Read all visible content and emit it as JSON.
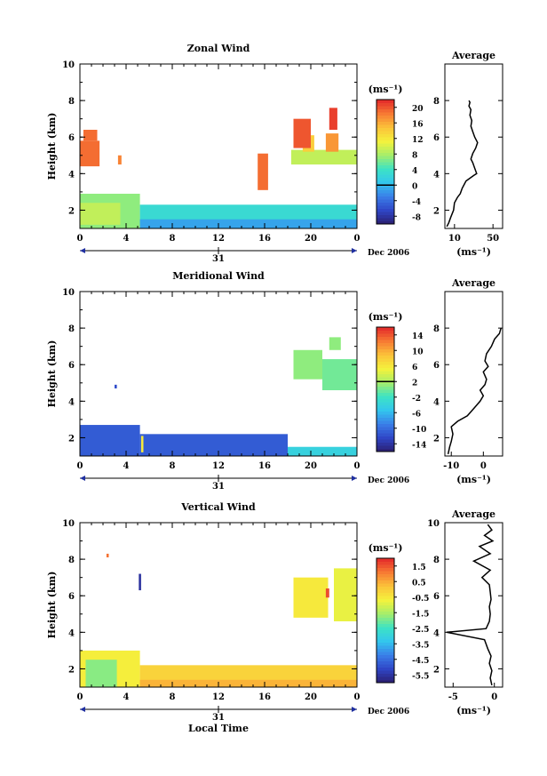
{
  "figure": {
    "footer_date": "Dec 2006",
    "day_label": "31",
    "bottom_xlabel": "Local Time"
  },
  "chart_data": [
    {
      "type": "heatmap",
      "title": "Zonal Wind",
      "ylabel": "Height (km)",
      "xlabel": "",
      "unit_label": "(ms⁻¹)",
      "x_ticks": [
        "0",
        "4",
        "8",
        "12",
        "16",
        "20",
        "0"
      ],
      "x_range": [
        0,
        24
      ],
      "y_ticks": [
        "2",
        "4",
        "6",
        "8",
        "10"
      ],
      "y_range": [
        1,
        10
      ],
      "colorbar_ticks": [
        "20",
        "16",
        "12",
        "8",
        "4",
        "0",
        "-4",
        "-8"
      ],
      "colorbar_range": [
        -10,
        22
      ],
      "colorbar_marker": 0,
      "regions": [
        {
          "x0": 0,
          "x1": 5.2,
          "y0": 1.0,
          "y1": 2.9,
          "value": 7
        },
        {
          "x0": 0,
          "x1": 3.5,
          "y0": 1.2,
          "y1": 2.4,
          "value": 9
        },
        {
          "x0": 5.2,
          "x1": 24,
          "y0": 1.0,
          "y1": 2.3,
          "value": 3
        },
        {
          "x0": 5.2,
          "x1": 24,
          "y0": 1.0,
          "y1": 1.5,
          "value": -1
        },
        {
          "x0": 0,
          "x1": 1.7,
          "y0": 4.4,
          "y1": 5.8,
          "value": 19
        },
        {
          "x0": 0.3,
          "x1": 1.5,
          "y0": 5.8,
          "y1": 6.4,
          "value": 19
        },
        {
          "x0": 3.3,
          "x1": 3.6,
          "y0": 4.5,
          "y1": 5.0,
          "value": 18
        },
        {
          "x0": 15.4,
          "x1": 16.3,
          "y0": 3.1,
          "y1": 5.1,
          "value": 19
        },
        {
          "x0": 18.3,
          "x1": 24,
          "y0": 4.5,
          "y1": 5.3,
          "value": 9
        },
        {
          "x0": 19.3,
          "x1": 20.3,
          "y0": 5.2,
          "y1": 6.1,
          "value": 14
        },
        {
          "x0": 18.5,
          "x1": 20.0,
          "y0": 5.4,
          "y1": 7.0,
          "value": 20
        },
        {
          "x0": 21.3,
          "x1": 22.4,
          "y0": 5.2,
          "y1": 6.2,
          "value": 17
        },
        {
          "x0": 21.6,
          "x1": 22.3,
          "y0": 6.4,
          "y1": 7.6,
          "value": 21
        }
      ],
      "profile": {
        "title": "Average",
        "xlabel": "(ms⁻¹)",
        "x_ticks": [
          "10",
          "50"
        ],
        "x_range": [
          0,
          60
        ],
        "y_ticks": [
          "2",
          "4",
          "6",
          "8"
        ],
        "y_range": [
          1,
          10
        ],
        "points": [
          [
            2,
            1.1
          ],
          [
            4,
            1.3
          ],
          [
            6,
            1.6
          ],
          [
            9,
            2.0
          ],
          [
            10,
            2.4
          ],
          [
            13,
            2.7
          ],
          [
            16,
            2.9
          ],
          [
            18,
            3.2
          ],
          [
            22,
            3.6
          ],
          [
            30,
            3.9
          ],
          [
            33,
            4.0
          ],
          [
            31,
            4.3
          ],
          [
            29,
            4.6
          ],
          [
            27,
            4.8
          ],
          [
            29,
            5.1
          ],
          [
            32,
            5.4
          ],
          [
            34,
            5.7
          ],
          [
            31,
            6.0
          ],
          [
            29,
            6.3
          ],
          [
            27,
            6.6
          ],
          [
            28,
            6.9
          ],
          [
            26,
            7.2
          ],
          [
            27,
            7.5
          ],
          [
            25,
            7.7
          ],
          [
            26,
            7.9
          ],
          [
            25,
            8.0
          ]
        ]
      }
    },
    {
      "type": "heatmap",
      "title": "Meridional Wind",
      "ylabel": "Height (km)",
      "xlabel": "",
      "unit_label": "(ms⁻¹)",
      "x_ticks": [
        "0",
        "4",
        "8",
        "12",
        "16",
        "20",
        "0"
      ],
      "x_range": [
        0,
        24
      ],
      "y_ticks": [
        "2",
        "4",
        "6",
        "8",
        "10"
      ],
      "y_range": [
        1,
        10
      ],
      "colorbar_ticks": [
        "14",
        "10",
        "6",
        "2",
        "-2",
        "-6",
        "-10",
        "-14"
      ],
      "colorbar_range": [
        -16,
        16
      ],
      "colorbar_marker": 2,
      "regions": [
        {
          "x0": 0,
          "x1": 5.2,
          "y0": 1.0,
          "y1": 2.7,
          "value": -11
        },
        {
          "x0": 5.2,
          "x1": 18,
          "y0": 1.0,
          "y1": 2.2,
          "value": -11
        },
        {
          "x0": 18,
          "x1": 24,
          "y0": 1.0,
          "y1": 1.5,
          "value": -4
        },
        {
          "x0": 5.3,
          "x1": 5.5,
          "y0": 1.2,
          "y1": 2.1,
          "value": 6
        },
        {
          "x0": 3.0,
          "x1": 3.2,
          "y0": 4.7,
          "y1": 4.9,
          "value": -12
        },
        {
          "x0": 18.5,
          "x1": 21.0,
          "y0": 5.2,
          "y1": 6.8,
          "value": 1
        },
        {
          "x0": 21.0,
          "x1": 24,
          "y0": 4.6,
          "y1": 6.3,
          "value": 0
        },
        {
          "x0": 21.6,
          "x1": 22.6,
          "y0": 6.8,
          "y1": 7.5,
          "value": 1
        }
      ],
      "profile": {
        "title": "Average",
        "xlabel": "(ms⁻¹)",
        "x_ticks": [
          "-10",
          "0"
        ],
        "x_range": [
          -12,
          6
        ],
        "y_ticks": [
          "2",
          "4",
          "6",
          "8"
        ],
        "y_range": [
          1,
          10
        ],
        "points": [
          [
            -11,
            1.1
          ],
          [
            -10.5,
            1.5
          ],
          [
            -10,
            1.8
          ],
          [
            -9.5,
            2.2
          ],
          [
            -10,
            2.6
          ],
          [
            -8,
            2.9
          ],
          [
            -5,
            3.2
          ],
          [
            -3,
            3.6
          ],
          [
            -1,
            4.0
          ],
          [
            0,
            4.3
          ],
          [
            -1,
            4.6
          ],
          [
            0.5,
            4.9
          ],
          [
            1,
            5.2
          ],
          [
            0,
            5.6
          ],
          [
            1.5,
            5.9
          ],
          [
            0.5,
            6.2
          ],
          [
            1,
            6.6
          ],
          [
            2.5,
            7.0
          ],
          [
            3.5,
            7.4
          ],
          [
            5,
            7.7
          ],
          [
            5.5,
            8.0
          ]
        ]
      }
    },
    {
      "type": "heatmap",
      "title": "Vertical Wind",
      "ylabel": "Height (km)",
      "xlabel": "Local Time",
      "unit_label": "(ms⁻¹)",
      "x_ticks": [
        "0",
        "4",
        "8",
        "12",
        "16",
        "20",
        "0"
      ],
      "x_range": [
        0,
        24
      ],
      "y_ticks": [
        "2",
        "4",
        "6",
        "8",
        "10"
      ],
      "y_range": [
        1,
        10
      ],
      "colorbar_ticks": [
        "1.5",
        "0.5",
        "-0.5",
        "-1.5",
        "-2.5",
        "-3.5",
        "-4.5",
        "-5.5"
      ],
      "colorbar_range": [
        -6,
        2
      ],
      "colorbar_marker": null,
      "regions": [
        {
          "x0": 0,
          "x1": 5.2,
          "y0": 1.0,
          "y1": 3.0,
          "value": -0.6
        },
        {
          "x0": 0.5,
          "x1": 3.2,
          "y0": 1.0,
          "y1": 2.5,
          "value": -1.8
        },
        {
          "x0": 5.2,
          "x1": 24,
          "y0": 1.0,
          "y1": 2.2,
          "value": -0.1
        },
        {
          "x0": 5.2,
          "x1": 24,
          "y0": 1.0,
          "y1": 1.4,
          "value": 0.4
        },
        {
          "x0": 18.5,
          "x1": 21.5,
          "y0": 4.8,
          "y1": 7.0,
          "value": -0.5
        },
        {
          "x0": 22.0,
          "x1": 24,
          "y0": 4.6,
          "y1": 7.5,
          "value": -0.8
        },
        {
          "x0": 5.1,
          "x1": 5.3,
          "y0": 6.3,
          "y1": 7.2,
          "value": -5.5
        },
        {
          "x0": 2.3,
          "x1": 2.5,
          "y0": 8.1,
          "y1": 8.3,
          "value": 1.2
        },
        {
          "x0": 21.3,
          "x1": 21.6,
          "y0": 5.9,
          "y1": 6.4,
          "value": 1.6
        }
      ],
      "profile": {
        "title": "Average",
        "xlabel": "(ms⁻¹)",
        "x_ticks": [
          "-5",
          "0"
        ],
        "x_range": [
          -6,
          1
        ],
        "y_ticks": [
          "2",
          "4",
          "6",
          "8",
          "10"
        ],
        "y_range": [
          1,
          10
        ],
        "points": [
          [
            -0.3,
            1.1
          ],
          [
            -0.5,
            1.5
          ],
          [
            -0.3,
            1.9
          ],
          [
            -0.6,
            2.3
          ],
          [
            -0.4,
            2.7
          ],
          [
            -0.8,
            3.1
          ],
          [
            -1.2,
            3.6
          ],
          [
            -5.8,
            4.0
          ],
          [
            -1,
            4.2
          ],
          [
            -0.6,
            4.6
          ],
          [
            -0.5,
            5.0
          ],
          [
            -0.6,
            5.4
          ],
          [
            -0.4,
            5.8
          ],
          [
            -0.5,
            6.2
          ],
          [
            -0.6,
            6.6
          ],
          [
            -1.5,
            7.0
          ],
          [
            -0.5,
            7.4
          ],
          [
            -2.5,
            7.9
          ],
          [
            -0.5,
            8.3
          ],
          [
            -1.8,
            8.7
          ],
          [
            -0.2,
            9.0
          ],
          [
            -1.2,
            9.3
          ],
          [
            -0.3,
            9.6
          ],
          [
            -0.8,
            9.9
          ]
        ]
      }
    }
  ]
}
